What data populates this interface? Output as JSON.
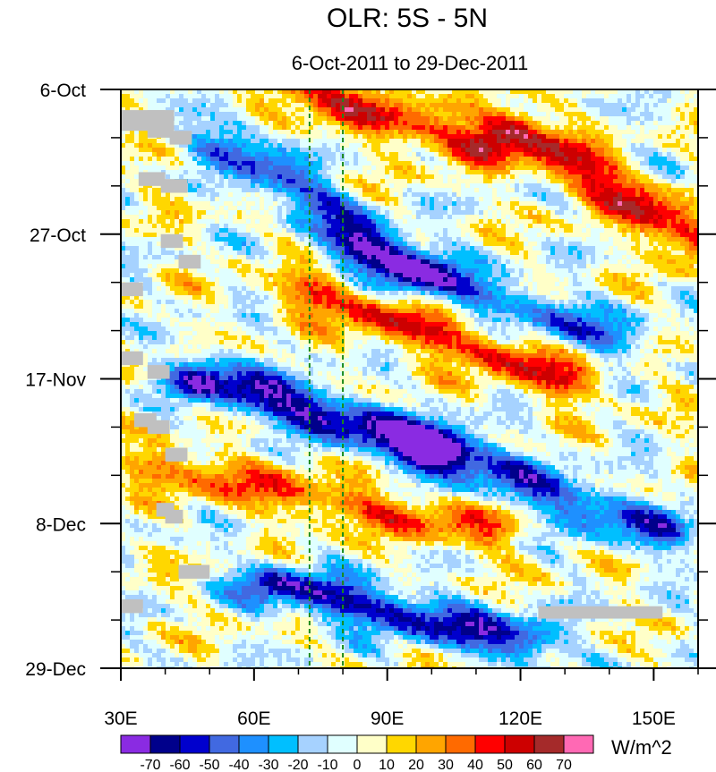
{
  "chart_data": {
    "type": "heatmap",
    "title": "OLR: 5S - 5N",
    "subtitle": "6-Oct-2011 to 29-Dec-2011",
    "xlabel": "",
    "ylabel": "",
    "x_range_deg_east": [
      30,
      160
    ],
    "x_ticks": [
      {
        "value": 30,
        "label": "30E"
      },
      {
        "value": 60,
        "label": "60E"
      },
      {
        "value": 90,
        "label": "90E"
      },
      {
        "value": 120,
        "label": "120E"
      },
      {
        "value": 150,
        "label": "150E"
      }
    ],
    "y_ticks": [
      {
        "day": 0,
        "label": "6-Oct"
      },
      {
        "day": 21,
        "label": "27-Oct"
      },
      {
        "day": 42,
        "label": "17-Nov"
      },
      {
        "day": 63,
        "label": "8-Dec"
      },
      {
        "day": 84,
        "label": "29-Dec"
      }
    ],
    "reference_lines_deg_east": [
      72.5,
      80
    ],
    "colorbar": {
      "units": "W/m^2",
      "levels": [
        -70,
        -60,
        -50,
        -40,
        -30,
        -20,
        -10,
        0,
        10,
        20,
        30,
        40,
        50,
        60,
        70
      ],
      "level_labels": [
        "-70",
        "-60",
        "-50",
        "-40",
        "-30",
        "-20",
        "-10",
        "0",
        "10",
        "20",
        "30",
        "40",
        "50",
        "60",
        "70"
      ],
      "colors": [
        "#8a2be2",
        "#00008b",
        "#0000cd",
        "#4169e1",
        "#1e90ff",
        "#00bfff",
        "#a6d2ff",
        "#e0ffff",
        "#ffffc8",
        "#ffd700",
        "#ffa500",
        "#ff6a00",
        "#ff0000",
        "#cd0000",
        "#a52a2a",
        "#ff69b4"
      ],
      "missing_color": "#c0c0c0"
    },
    "anomaly_features": [
      {
        "description": "enhanced convection band",
        "lon_start": 55,
        "day_start": 8,
        "lon_end": 95,
        "day_end": 26,
        "value": -50
      },
      {
        "description": "enhanced convection band",
        "lon_start": 85,
        "day_start": 24,
        "lon_end": 140,
        "day_end": 36,
        "value": -40
      },
      {
        "description": "enhanced convection band",
        "lon_start": 50,
        "day_start": 42,
        "lon_end": 100,
        "day_end": 52,
        "value": -70
      },
      {
        "description": "enhanced convection band",
        "lon_start": 100,
        "day_start": 52,
        "lon_end": 150,
        "day_end": 64,
        "value": -50
      },
      {
        "description": "enhanced convection band",
        "lon_start": 65,
        "day_start": 72,
        "lon_end": 120,
        "day_end": 80,
        "value": -60
      },
      {
        "description": "suppressed convection",
        "lon_start": 70,
        "day_start": 0,
        "lon_end": 110,
        "day_end": 8,
        "value": 45
      },
      {
        "description": "suppressed convection",
        "lon_start": 120,
        "day_start": 6,
        "lon_end": 160,
        "day_end": 22,
        "value": 55
      },
      {
        "description": "suppressed convection",
        "lon_start": 75,
        "day_start": 30,
        "lon_end": 130,
        "day_end": 42,
        "value": 45
      },
      {
        "description": "suppressed convection",
        "lon_start": 40,
        "day_start": 55,
        "lon_end": 110,
        "day_end": 64,
        "value": 35
      }
    ]
  }
}
